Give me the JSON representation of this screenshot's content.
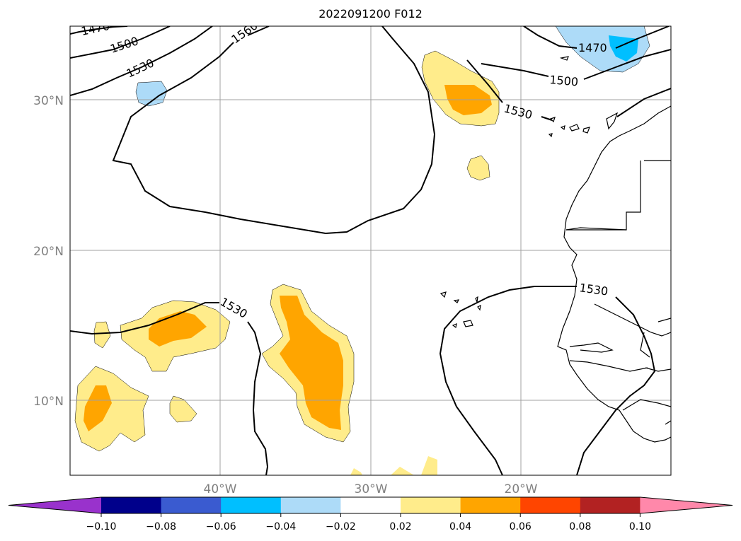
{
  "map": {
    "title": "2022091200 F012",
    "lat_labels": [
      "30°N",
      "20°N",
      "10°N"
    ],
    "lon_labels": [
      "40°W",
      "30°W",
      "20°W"
    ],
    "contour_labels": [
      "1470",
      "1500",
      "1530",
      "1560",
      "1470",
      "1500",
      "1530",
      "1530",
      "1530"
    ],
    "shading_colors": {
      "light_yellow": "#FFEC8B",
      "orange": "#FFA500",
      "light_blue": "#ADDBF8",
      "cyan": "#00BFFF"
    }
  },
  "colorbar": {
    "colors": [
      "#9932CC",
      "#00008B",
      "#3A5BD0",
      "#00BFFF",
      "#ADDBF8",
      "#FFFFFF",
      "#FFEC8B",
      "#FFA500",
      "#FF4500",
      "#B22222",
      "#FF88AA"
    ],
    "tick_labels": [
      "−0.10",
      "−0.08",
      "−0.06",
      "−0.04",
      "−0.02",
      "0.02",
      "0.04",
      "0.06",
      "0.08",
      "0.10"
    ]
  }
}
